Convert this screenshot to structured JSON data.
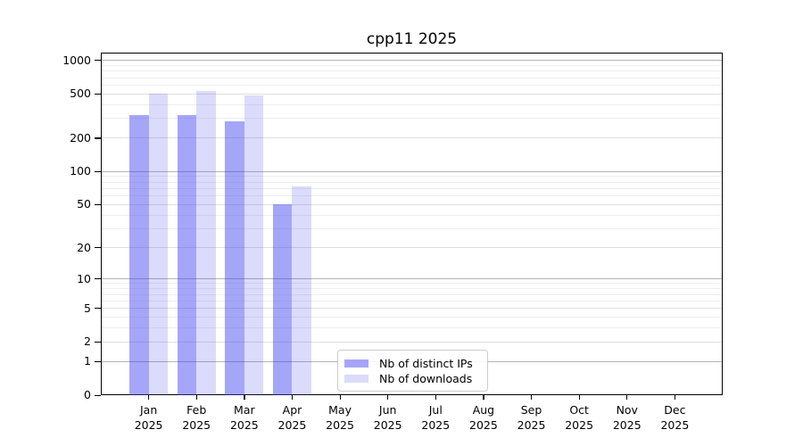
{
  "chart_data": {
    "type": "bar",
    "title": "cpp11 2025",
    "categories": [
      "Jan 2025",
      "Feb 2025",
      "Mar 2025",
      "Apr 2025",
      "May 2025",
      "Jun 2025",
      "Jul 2025",
      "Aug 2025",
      "Sep 2025",
      "Oct 2025",
      "Nov 2025",
      "Dec 2025"
    ],
    "series": [
      {
        "name": "Nb of distinct IPs",
        "color": "rgba(58,58,240,0.45)",
        "values": [
          320,
          322,
          282,
          50,
          null,
          null,
          null,
          null,
          null,
          null,
          null,
          null
        ]
      },
      {
        "name": "Nb of downloads",
        "color": "rgba(58,58,240,0.18)",
        "values": [
          500,
          535,
          480,
          73,
          null,
          null,
          null,
          null,
          null,
          null,
          null,
          null
        ]
      }
    ],
    "xlabel": "",
    "ylabel": "",
    "y_scale": "log10(1+y)",
    "y_tick_values": [
      1000,
      500,
      200,
      100,
      50,
      20,
      10,
      5,
      2,
      1,
      0
    ],
    "ylim": [
      0,
      1170
    ],
    "grid": "on",
    "major_grid_at": [
      1,
      10,
      100,
      1000
    ],
    "legend_position": "inside-bottom-center",
    "colors": {
      "bar_distinct_ips": "rgba(58,58,240,0.45)",
      "bar_downloads": "rgba(58,58,240,0.18)",
      "grid_major": "#b5b5b5",
      "grid_sub": "#dfdfdf",
      "grid_minor": "#eeeeee",
      "spine": "#000000",
      "legend_border": "#cccccc"
    }
  }
}
